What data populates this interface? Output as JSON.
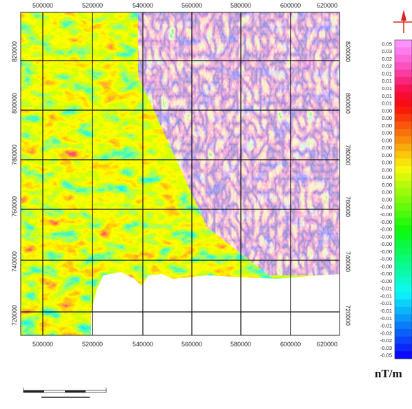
{
  "map": {
    "x_ticks_top": [
      "500000",
      "520000",
      "540000",
      "560000",
      "580000",
      "600000",
      "620000"
    ],
    "x_ticks_bottom": [
      "500000",
      "520000",
      "540000",
      "560000",
      "580000",
      "600000",
      "620000"
    ],
    "y_ticks_left": [
      "820000",
      "800000",
      "780000",
      "760000",
      "740000",
      "720000"
    ],
    "y_ticks_right": [
      "820000",
      "800000",
      "780000",
      "760000",
      "740000",
      "720000"
    ]
  },
  "legend": {
    "labels": [
      "0.05",
      "0.03",
      "0.02",
      "0.02",
      "0.01",
      "0.01",
      "0.01",
      "0.01",
      "0.01",
      "0.00",
      "0.00",
      "0.00",
      "0.00",
      "0.00",
      "0.00",
      "0.00",
      "0.00",
      "0.00",
      "0.00",
      "0.00",
      "0.00",
      "0.00",
      "-0.00",
      "-0.00",
      "-0.00",
      "-0.00",
      "-0.00",
      "-0.00",
      "-0.00",
      "-0.00",
      "-0.00",
      "-0.00",
      "-0.00",
      "-0.01",
      "-0.01",
      "-0.01",
      "-0.01",
      "-0.01",
      "-0.01",
      "-0.02",
      "-0.02",
      "-0.03",
      "-0.05"
    ],
    "unit": "nT/m"
  }
}
